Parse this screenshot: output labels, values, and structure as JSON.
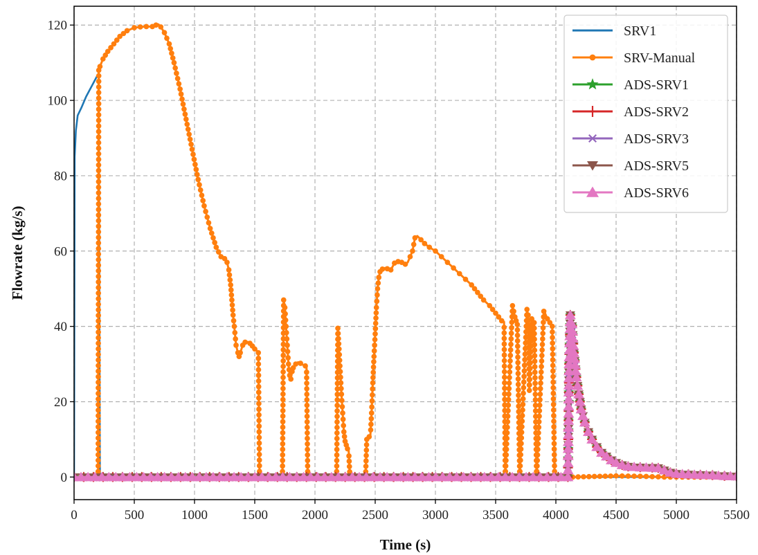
{
  "chart_data": {
    "type": "line",
    "title": "",
    "xlabel": "Time (s)",
    "ylabel": "Flowrate (kg/s)",
    "xlim": [
      0,
      5500
    ],
    "ylim": [
      -6,
      125
    ],
    "xticks": [
      0,
      500,
      1000,
      1500,
      2000,
      2500,
      3000,
      3500,
      4000,
      4500,
      5000,
      5500
    ],
    "yticks": [
      0,
      20,
      40,
      60,
      80,
      100,
      120
    ],
    "grid": true,
    "legend_position": "top-right",
    "series": [
      {
        "name": "SRV1",
        "color": "#1f77b4",
        "marker": "none",
        "x": [
          0,
          5,
          15,
          30,
          60,
          100,
          150,
          200,
          205,
          210,
          215,
          5500
        ],
        "y": [
          0,
          85,
          92,
          96,
          98,
          101,
          104,
          107,
          107,
          50,
          0,
          0
        ]
      },
      {
        "name": "SRV-Manual",
        "color": "#ff7f0e",
        "marker": "circle",
        "x": [
          0,
          200,
          205,
          215,
          240,
          280,
          330,
          380,
          440,
          500,
          550,
          600,
          650,
          680,
          700,
          720,
          750,
          790,
          830,
          880,
          930,
          980,
          1030,
          1080,
          1130,
          1180,
          1220,
          1250,
          1270,
          1285,
          1300,
          1310,
          1320,
          1330,
          1345,
          1360,
          1370,
          1380,
          1400,
          1420,
          1440,
          1460,
          1480,
          1500,
          1520,
          1530,
          1540,
          1730,
          1740,
          1750,
          1760,
          1770,
          1780,
          1790,
          1800,
          1810,
          1820,
          1840,
          1860,
          1880,
          1900,
          1920,
          1930,
          1940,
          2180,
          2190,
          2200,
          2210,
          2220,
          2230,
          2240,
          2250,
          2260,
          2270,
          2280,
          2290,
          2420,
          2430,
          2440,
          2450,
          2460,
          2470,
          2480,
          2490,
          2500,
          2510,
          2520,
          2530,
          2540,
          2560,
          2580,
          2600,
          2630,
          2660,
          2690,
          2720,
          2750,
          2770,
          2790,
          2810,
          2830,
          2850,
          2880,
          2910,
          2950,
          3000,
          3050,
          3100,
          3150,
          3200,
          3250,
          3300,
          3350,
          3400,
          3450,
          3500,
          3550,
          3570,
          3580,
          3640,
          3650,
          3660,
          3670,
          3680,
          3700,
          3760,
          3770,
          3780,
          3800,
          3820,
          3840,
          3900,
          3910,
          3930,
          3950,
          3970,
          3990,
          4140,
          4500,
          4700,
          4800,
          4900,
          5000,
          5200,
          5400,
          5500
        ],
        "y": [
          0,
          0,
          108,
          109,
          111,
          113,
          115,
          117,
          118.5,
          119.3,
          119.5,
          119.6,
          119.6,
          120,
          120.2,
          119.5,
          118,
          115,
          110,
          103,
          95,
          87,
          79,
          72,
          66,
          61,
          58.5,
          58,
          57,
          55,
          51,
          47,
          43,
          40,
          35,
          33,
          32,
          33,
          35,
          35.8,
          35.9,
          35.5,
          34.8,
          34,
          33.5,
          33,
          0,
          0,
          47,
          45,
          40,
          35,
          30,
          27,
          26,
          28,
          29,
          30,
          30.5,
          30.2,
          29.8,
          29.5,
          29.3,
          0,
          0,
          39.5,
          34,
          28,
          22,
          17,
          12,
          9.5,
          8.5,
          7.5,
          7,
          0,
          0,
          10,
          10.5,
          10.7,
          11,
          17,
          25,
          32,
          38,
          45,
          50,
          53,
          54.5,
          55.2,
          55.5,
          55.3,
          55,
          56.8,
          57.2,
          57,
          56.5,
          57,
          58.5,
          60,
          63.5,
          64,
          63,
          62,
          61,
          60,
          58.5,
          57,
          55.5,
          54,
          52.5,
          51,
          49,
          47,
          45.5,
          43.5,
          41.5,
          41.2,
          0,
          45.5,
          44,
          42.5,
          41.5,
          40.5,
          0,
          44.5,
          43,
          23,
          42,
          41,
          0,
          44,
          43.5,
          42,
          41,
          40,
          0,
          0,
          0.3,
          0.2,
          0.1,
          0,
          0,
          0,
          0,
          0
        ]
      },
      {
        "name": "ADS-SRV1",
        "color": "#2ca02c",
        "marker": "star",
        "x": [
          0,
          4100,
          4110,
          4120,
          4130,
          4150,
          4170,
          4190,
          4210,
          4240,
          4270,
          4300,
          4340,
          4380,
          4420,
          4460,
          4500,
          4550,
          4600,
          4700,
          4800,
          4850,
          4900,
          4950,
          5000,
          5100,
          5200,
          5300,
          5400,
          5500
        ],
        "y": [
          0,
          0,
          30,
          43,
          42.5,
          33,
          26.5,
          22,
          18,
          14.5,
          12,
          10,
          8,
          6.5,
          5.5,
          4.5,
          3.8,
          3.2,
          2.8,
          2.6,
          2.5,
          2.4,
          1.8,
          1.2,
          0.9,
          0.7,
          0.6,
          0.5,
          0.3,
          0.2
        ]
      },
      {
        "name": "ADS-SRV2",
        "color": "#d62728",
        "marker": "plus",
        "x": [
          0,
          4100,
          4110,
          4120,
          4130,
          4150,
          4170,
          4190,
          4210,
          4240,
          4270,
          4300,
          4340,
          4380,
          4420,
          4460,
          4500,
          4550,
          4600,
          4700,
          4800,
          4850,
          4900,
          4950,
          5000,
          5100,
          5200,
          5300,
          5400,
          5500
        ],
        "y": [
          0,
          0,
          30,
          43,
          42.5,
          33,
          26.5,
          22,
          18,
          14.5,
          12,
          10,
          8,
          6.5,
          5.5,
          4.5,
          3.8,
          3.2,
          2.8,
          2.6,
          2.5,
          2.4,
          1.8,
          1.2,
          0.9,
          0.7,
          0.6,
          0.5,
          0.3,
          0.2
        ]
      },
      {
        "name": "ADS-SRV3",
        "color": "#9467bd",
        "marker": "x",
        "x": [
          0,
          4100,
          4110,
          4120,
          4130,
          4150,
          4170,
          4190,
          4210,
          4240,
          4270,
          4300,
          4340,
          4380,
          4420,
          4460,
          4500,
          4550,
          4600,
          4700,
          4800,
          4850,
          4900,
          4950,
          5000,
          5100,
          5200,
          5300,
          5400,
          5500
        ],
        "y": [
          0,
          0,
          30,
          43,
          42.5,
          33,
          26.5,
          22,
          18,
          14.5,
          12,
          10,
          8,
          6.5,
          5.5,
          4.5,
          3.8,
          3.2,
          2.8,
          2.6,
          2.5,
          2.4,
          1.8,
          1.2,
          0.9,
          0.7,
          0.6,
          0.5,
          0.3,
          0.2
        ]
      },
      {
        "name": "ADS-SRV5",
        "color": "#8c564b",
        "marker": "triangle-down",
        "x": [
          0,
          4100,
          4110,
          4120,
          4130,
          4150,
          4170,
          4190,
          4210,
          4240,
          4270,
          4300,
          4340,
          4380,
          4420,
          4460,
          4500,
          4550,
          4600,
          4700,
          4800,
          4850,
          4900,
          4950,
          5000,
          5100,
          5200,
          5300,
          5400,
          5500
        ],
        "y": [
          0,
          0,
          30,
          43,
          42.5,
          33,
          26.5,
          22,
          18,
          14.5,
          12,
          10,
          8,
          6.5,
          5.5,
          4.5,
          3.8,
          3.2,
          2.8,
          2.6,
          2.5,
          2.4,
          1.8,
          1.2,
          0.9,
          0.7,
          0.6,
          0.5,
          0.3,
          0.2
        ]
      },
      {
        "name": "ADS-SRV6",
        "color": "#e377c2",
        "marker": "triangle-up",
        "x": [
          0,
          4100,
          4110,
          4120,
          4130,
          4150,
          4170,
          4190,
          4210,
          4240,
          4270,
          4300,
          4340,
          4380,
          4420,
          4460,
          4500,
          4550,
          4600,
          4700,
          4800,
          4850,
          4900,
          4950,
          5000,
          5100,
          5200,
          5300,
          5400,
          5500
        ],
        "y": [
          0,
          0,
          30,
          43,
          42.5,
          33,
          26.5,
          22,
          18,
          14.5,
          12,
          10,
          8,
          6.5,
          5.5,
          4.5,
          3.8,
          3.2,
          2.8,
          2.6,
          2.5,
          2.4,
          1.8,
          1.2,
          0.9,
          0.7,
          0.6,
          0.5,
          0.3,
          0.2
        ]
      }
    ]
  }
}
